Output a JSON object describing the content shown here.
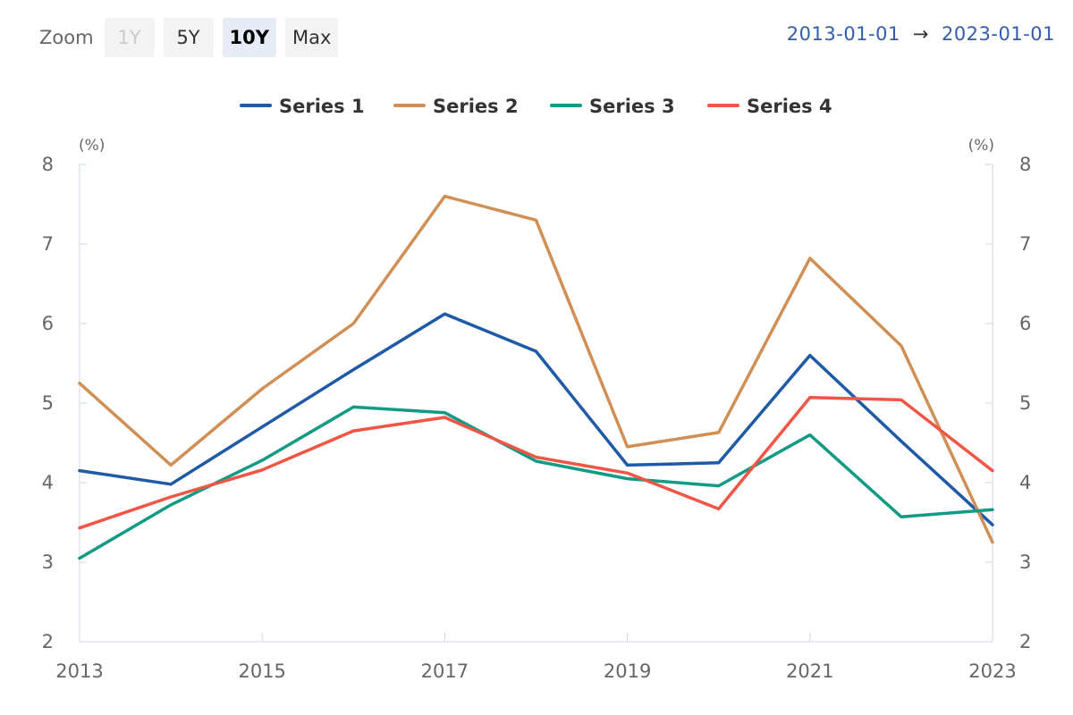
{
  "toolbar": {
    "zoom_label": "Zoom",
    "buttons": [
      {
        "label": "1Y",
        "state": "disabled"
      },
      {
        "label": "5Y",
        "state": "normal"
      },
      {
        "label": "10Y",
        "state": "active"
      },
      {
        "label": "Max",
        "state": "normal"
      }
    ]
  },
  "range": {
    "from": "2013-01-01",
    "arrow": "→",
    "to": "2023-01-01"
  },
  "chart_data": {
    "type": "line",
    "x": [
      2013,
      2014,
      2015,
      2016,
      2017,
      2018,
      2019,
      2020,
      2021,
      2022,
      2023
    ],
    "xlim": [
      2013,
      2023
    ],
    "x_ticks": [
      "2013",
      "2015",
      "2017",
      "2019",
      "2021",
      "2023"
    ],
    "ylim": [
      2,
      8
    ],
    "y_ticks": [
      "2",
      "3",
      "4",
      "5",
      "6",
      "7",
      "8"
    ],
    "y_unit_left": "(%)",
    "y_unit_right": "(%)",
    "grid": false,
    "legend_position": "top-center",
    "series": [
      {
        "name": "Series 1",
        "color": "#1f5aa6",
        "values": [
          4.15,
          3.98,
          4.7,
          5.42,
          6.12,
          5.65,
          4.22,
          4.25,
          5.6,
          4.52,
          3.47
        ]
      },
      {
        "name": "Series 2",
        "color": "#d08f55",
        "values": [
          5.25,
          4.22,
          5.18,
          6.0,
          7.6,
          7.3,
          4.45,
          4.63,
          6.82,
          5.72,
          3.25
        ]
      },
      {
        "name": "Series 3",
        "color": "#119a84",
        "values": [
          3.05,
          3.72,
          4.28,
          4.95,
          4.88,
          4.27,
          4.05,
          3.96,
          4.6,
          3.57,
          3.66
        ]
      },
      {
        "name": "Series 4",
        "color": "#f15545",
        "values": [
          3.43,
          3.82,
          4.16,
          4.65,
          4.82,
          4.32,
          4.12,
          3.67,
          5.07,
          5.04,
          4.15
        ]
      }
    ]
  }
}
